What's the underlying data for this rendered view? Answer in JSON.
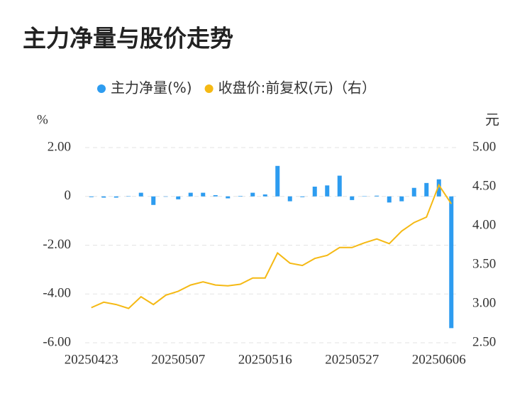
{
  "chart_data": {
    "type": "bar_line",
    "title": "主力净量与股价走势",
    "y_label": "%",
    "y2_label": "元",
    "categories": [
      "20250423",
      null,
      null,
      null,
      null,
      null,
      null,
      "20250507",
      null,
      null,
      null,
      null,
      null,
      null,
      "20250516",
      null,
      null,
      null,
      null,
      null,
      null,
      "20250527",
      null,
      null,
      null,
      null,
      null,
      null,
      "20250606",
      null
    ],
    "series": [
      {
        "name": "主力净量(%)",
        "color": "#2d9cf0",
        "type": "bar",
        "axis": "y",
        "values": [
          -0.03,
          -0.05,
          -0.05,
          0.01,
          0.15,
          -0.35,
          0,
          -0.12,
          0.15,
          0.15,
          0.05,
          -0.08,
          0.02,
          0.15,
          0.08,
          1.25,
          -0.2,
          -0.03,
          0.4,
          0.45,
          0.85,
          -0.15,
          0.01,
          0.03,
          -0.25,
          -0.2,
          0.35,
          0.55,
          0.7,
          -5.4
        ]
      },
      {
        "name": "收盘价:前复权(元)（右）",
        "color": "#f5b914",
        "type": "line",
        "axis": "y2",
        "values": [
          2.95,
          3.02,
          2.99,
          2.94,
          3.09,
          2.99,
          3.11,
          3.16,
          3.24,
          3.28,
          3.24,
          3.23,
          3.25,
          3.33,
          3.33,
          3.65,
          3.52,
          3.49,
          3.58,
          3.62,
          3.72,
          3.72,
          3.78,
          3.83,
          3.77,
          3.93,
          4.04,
          4.11,
          4.52,
          4.28
        ]
      }
    ],
    "ylim": [
      -6,
      2
    ],
    "yticks": [
      {
        "value": -6,
        "label": "-6.00"
      },
      {
        "value": -4,
        "label": "-4.00"
      },
      {
        "value": -2,
        "label": "-2.00"
      },
      0,
      {
        "value": 2,
        "label": "2.00"
      }
    ],
    "y2lim": [
      2.5,
      5
    ],
    "y2ticks": [
      {
        "value": 2.5,
        "label": "2.50"
      },
      {
        "value": 3,
        "label": "3.00"
      },
      {
        "value": 3.5,
        "label": "3.50"
      },
      {
        "value": 4,
        "label": "4.00"
      },
      {
        "value": 4.5,
        "label": "4.50"
      },
      {
        "value": 5,
        "label": "5.00"
      }
    ],
    "grid": true,
    "legend": "top"
  }
}
